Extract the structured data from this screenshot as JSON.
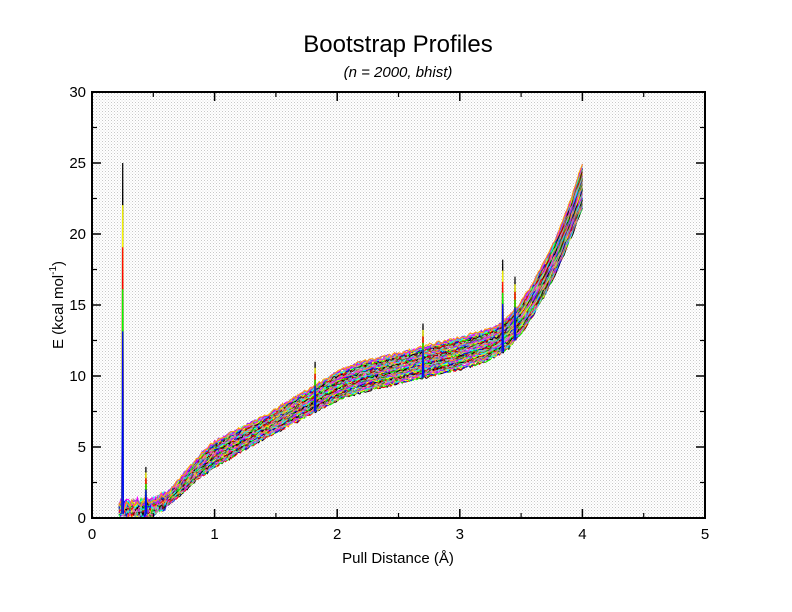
{
  "chart_data": {
    "type": "line",
    "title": "Bootstrap Profiles",
    "subtitle": "(n = 2000, bhist)",
    "xlabel": "Pull Distance (Å)",
    "ylabel": "E (kcal mol",
    "ylabel_sup": "-1",
    "ylabel_close": ")",
    "xlim": [
      0,
      5
    ],
    "ylim": [
      0,
      30
    ],
    "xticks": [
      0,
      1,
      2,
      3,
      4,
      5
    ],
    "yticks": [
      0,
      5,
      10,
      15,
      20,
      25,
      30
    ],
    "xtick_labels": [
      "0",
      "1",
      "2",
      "3",
      "4",
      "5"
    ],
    "ytick_labels": [
      "0",
      "5",
      "10",
      "15",
      "20",
      "25",
      "30"
    ],
    "grid": false,
    "n_profiles": 2000,
    "palette": [
      "#000000",
      "#ff0000",
      "#00ff00",
      "#0000ff",
      "#ffff00",
      "#bc8f8f",
      "#00ffff",
      "#ff00ff",
      "#a020f0",
      "#ffa500",
      "#228b22",
      "#ff69b4",
      "#40e0d0",
      "#8b0000",
      "#b0b0b0"
    ],
    "profile_band": {
      "x": [
        0.22,
        0.25,
        0.3,
        0.4,
        0.5,
        0.6,
        0.7,
        0.8,
        0.9,
        1.0,
        1.2,
        1.4,
        1.6,
        1.8,
        2.0,
        2.2,
        2.4,
        2.6,
        2.8,
        3.0,
        3.2,
        3.3,
        3.4,
        3.5,
        3.6,
        3.7,
        3.8,
        3.9,
        4.0
      ],
      "low": [
        0.3,
        0.3,
        0.3,
        0.2,
        0.4,
        0.8,
        1.5,
        2.3,
        3.0,
        3.6,
        4.6,
        5.6,
        6.5,
        7.4,
        8.3,
        8.9,
        9.3,
        9.7,
        10.1,
        10.5,
        11.0,
        11.4,
        12.0,
        13.0,
        14.3,
        15.8,
        17.6,
        19.6,
        21.8
      ],
      "high": [
        1.0,
        1.0,
        1.0,
        1.1,
        1.2,
        1.6,
        2.6,
        3.6,
        4.6,
        5.4,
        6.3,
        7.1,
        8.2,
        9.2,
        10.3,
        11.0,
        11.4,
        11.8,
        12.3,
        12.7,
        13.2,
        13.5,
        14.2,
        15.2,
        16.6,
        18.2,
        20.0,
        22.3,
        25.0
      ]
    },
    "spikes": [
      {
        "x": 0.25,
        "y": 25.0
      },
      {
        "x": 0.44,
        "y": 3.6
      },
      {
        "x": 1.82,
        "y": 11.0
      },
      {
        "x": 2.7,
        "y": 13.7
      },
      {
        "x": 3.35,
        "y": 18.2
      },
      {
        "x": 3.45,
        "y": 17.0
      }
    ]
  }
}
